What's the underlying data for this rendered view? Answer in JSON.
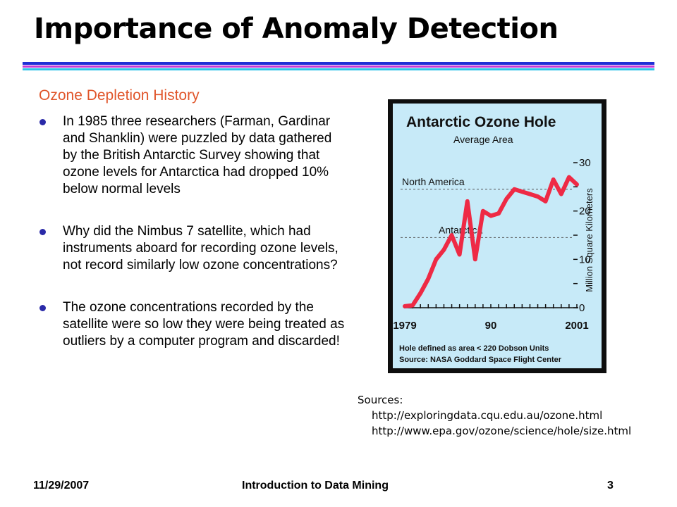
{
  "slide": {
    "title": "Importance of Anomaly Detection",
    "subtitle": "Ozone Depletion History",
    "bullets": [
      "In 1985 three researchers (Farman, Gardinar and Shanklin) were puzzled by data gathered by the British Antarctic Survey showing that ozone levels for Antarctica had dropped 10% below normal levels",
      "Why did the Nimbus 7 satellite, which had instruments aboard for recording ozone levels, not record similarly low ozone concentrations?",
      "The ozone concentrations recorded by the satellite were so low they were being treated as outliers by a computer program and discarded!"
    ],
    "sources_label": "Sources:",
    "sources": [
      "http://exploringdata.cqu.edu.au/ozone.html",
      "http://www.epa.gov/ozone/science/hole/size.html"
    ],
    "footer": {
      "date": "11/29/2007",
      "course": "Introduction to Data Mining",
      "page": "3"
    },
    "colors": {
      "rule_blue": "#1f2fd6",
      "rule_magenta": "#c23ad8",
      "rule_cyan": "#2ec4ea",
      "subtitle": "#e0552a",
      "bullet": "#2a2aa8"
    }
  },
  "chart_data": {
    "type": "line",
    "title": "Antarctic Ozone Hole",
    "subtitle": "Average Area",
    "ylabel": "Million Square Kilometers",
    "ylim": [
      0,
      30
    ],
    "yticks": [
      "30",
      "20",
      "10",
      "0"
    ],
    "xticks": [
      "1979",
      "90",
      "2001"
    ],
    "reference_lines": [
      {
        "label": "North America",
        "value": 24.5
      },
      {
        "label": "Antarctica",
        "value": 14.5
      }
    ],
    "footnote": [
      "Hole defined as area < 220 Dobson Units",
      "Source:  NASA Goddard Space Flight Center"
    ],
    "series": [
      {
        "color": "#ee2a45",
        "x": [
          1979,
          1980,
          1981,
          1982,
          1983,
          1984,
          1985,
          1986,
          1987,
          1988,
          1989,
          1990,
          1991,
          1992,
          1993,
          1994,
          1995,
          1996,
          1997,
          1998,
          1999,
          2000,
          2001
        ],
        "values": [
          0.3,
          0.5,
          3,
          6,
          10,
          12,
          15,
          11,
          22,
          10,
          20,
          19,
          19.5,
          22.5,
          24.5,
          24,
          23.5,
          23,
          22,
          26.5,
          23.5,
          27,
          25.5
        ]
      }
    ]
  }
}
